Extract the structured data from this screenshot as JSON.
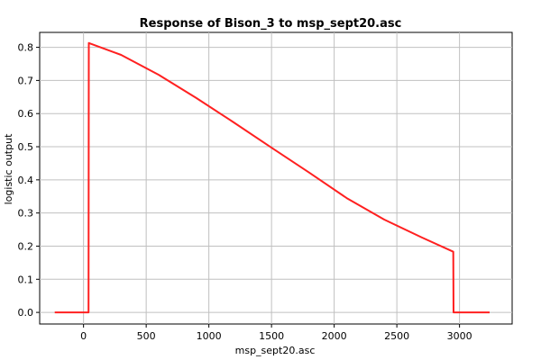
{
  "chart_data": {
    "type": "line",
    "title": "Response of Bison_3 to msp_sept20.asc",
    "xlabel": "msp_sept20.asc",
    "ylabel": "logistic output",
    "xlim": [
      -350,
      3420
    ],
    "ylim": [
      -0.035,
      0.845
    ],
    "x_ticks": [
      0,
      500,
      1000,
      1500,
      2000,
      2500,
      3000
    ],
    "y_ticks": [
      0.0,
      0.1,
      0.2,
      0.3,
      0.4,
      0.5,
      0.6,
      0.7,
      0.8
    ],
    "y_tick_labels": [
      "0.0",
      "0.1",
      "0.2",
      "0.3",
      "0.4",
      "0.5",
      "0.6",
      "0.7",
      "0.8"
    ],
    "grid": true,
    "series": [
      {
        "color": "#ff2020",
        "x": [
          -230,
          40,
          42,
          300,
          600,
          900,
          1200,
          1500,
          1800,
          2100,
          2400,
          2700,
          2950,
          2952,
          3240
        ],
        "y": [
          0.0,
          0.0,
          0.813,
          0.777,
          0.717,
          0.647,
          0.573,
          0.497,
          0.422,
          0.345,
          0.28,
          0.226,
          0.183,
          0.0,
          0.0
        ]
      }
    ]
  }
}
